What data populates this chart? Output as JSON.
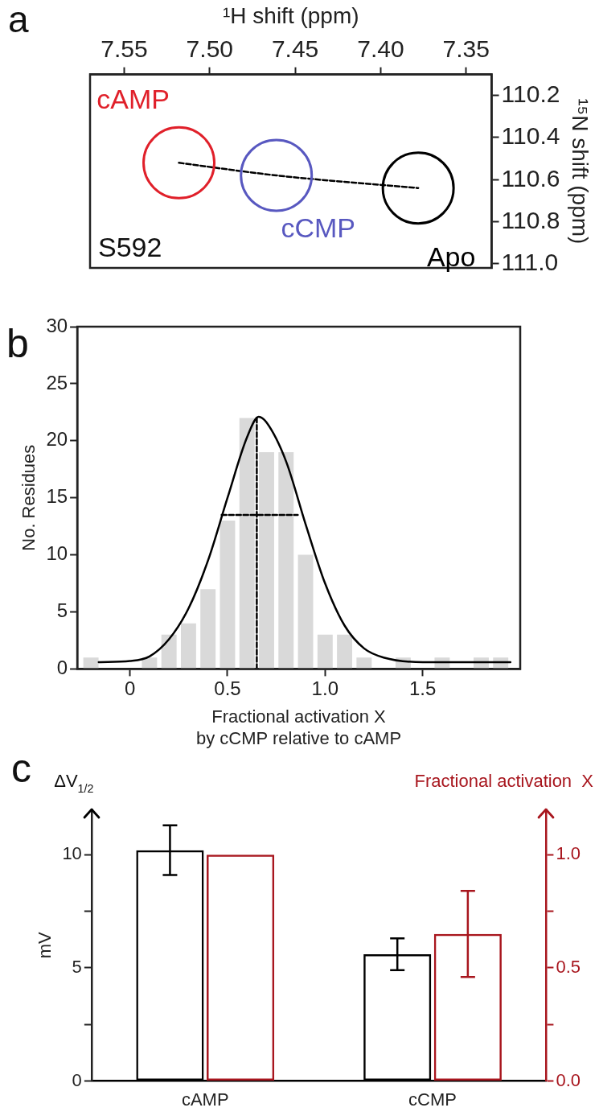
{
  "chart_data": [
    {
      "type": "scatter",
      "xlabel": "¹H shift (ppm)",
      "ylabel": "¹⁵N shift (ppm)",
      "xlim": [
        7.57,
        7.335
      ],
      "xticks": [
        7.55,
        {
          "value": 7.5,
          "label": "7.50"
        },
        7.45,
        {
          "value": 7.4,
          "label": "7.40"
        },
        7.35
      ],
      "ylim": [
        111.02,
        110.1
      ],
      "yticks": [
        110.2,
        110.4,
        110.6,
        110.8,
        {
          "value": 111,
          "label": "111.0"
        }
      ],
      "annotations": [
        "a",
        "S592"
      ],
      "series": [
        {
          "name": "cAMP",
          "color": "#e0202a",
          "marker": "circle",
          "x": [
            7.518
          ],
          "values": [
            110.52
          ]
        },
        {
          "name": "cCMP",
          "color": "#5858c0",
          "marker": "circle",
          "x": [
            7.461
          ],
          "values": [
            110.58
          ]
        },
        {
          "name": "Apo",
          "color": "#000000",
          "marker": "circle",
          "x": [
            7.378
          ],
          "values": [
            110.64
          ]
        },
        {
          "type": "line",
          "color": "#000000",
          "line_style": "dashed",
          "x": [
            7.518,
            7.461,
            7.378
          ],
          "values": [
            110.52,
            110.58,
            110.64
          ]
        }
      ]
    },
    {
      "type": "histogram",
      "xlabel": "Fractional activation X\nby cCMP relative to cAMP",
      "ylabel": "No. Residues",
      "xlim": [
        -0.27,
        2.0
      ],
      "xticks": [
        0,
        0.5,
        {
          "value": 1,
          "label": "1.0"
        },
        1.5
      ],
      "ylim": [
        0,
        30
      ],
      "yticks": [
        0,
        5,
        10,
        15,
        20,
        25,
        30
      ],
      "annotations": [
        "b"
      ],
      "bins": [
        -0.25,
        -0.15,
        -0.05,
        0.05,
        0.15,
        0.25,
        0.35,
        0.45,
        0.55,
        0.65,
        0.75,
        0.85,
        0.95,
        1.05,
        1.15,
        1.25,
        1.35,
        1.45,
        1.55,
        1.65,
        1.75,
        1.85,
        1.95
      ],
      "series": [
        {
          "type": "histogram",
          "color": "#d9d9d9",
          "values": [
            1,
            0,
            0,
            1,
            3,
            4,
            7,
            13,
            22,
            19,
            19,
            10,
            3,
            3,
            1,
            0,
            1,
            0,
            1,
            0,
            1,
            1
          ]
        },
        {
          "type": "line",
          "color": "#000000",
          "x": [
            -0.16,
            0,
            0.1,
            0.2,
            0.3,
            0.4,
            0.5,
            0.6,
            0.66,
            0.7,
            0.8,
            0.9,
            1.0,
            1.1,
            1.2,
            1.3,
            1.5,
            1.95
          ],
          "values": [
            0.6,
            0.7,
            1.1,
            2.6,
            5.3,
            9.5,
            15,
            20.3,
            22.1,
            21.6,
            18.2,
            12.7,
            7.5,
            3.8,
            1.8,
            1.0,
            0.6,
            0.6
          ]
        },
        {
          "type": "line",
          "color": "#000000",
          "line_style": "dashed",
          "x": [
            0.65,
            0.65
          ],
          "values": [
            0,
            22.1
          ]
        },
        {
          "type": "line",
          "color": "#000000",
          "line_style": "dashed",
          "x": [
            0.47,
            0.86
          ],
          "values": [
            13.5,
            13.5
          ]
        }
      ]
    },
    {
      "type": "bar",
      "categories": [
        "cAMP",
        "cCMP"
      ],
      "ylabel": "mV",
      "y2label": "Fractional activation  X",
      "ylim": [
        0,
        12
      ],
      "yticks": [
        0,
        {
          "value": 2.5,
          "label": null
        },
        5,
        {
          "value": 7.5,
          "label": null
        },
        10
      ],
      "y2lim": [
        0,
        1.2
      ],
      "y2ticks": [
        {
          "value": 0,
          "label": "0.0"
        },
        {
          "value": 0.25,
          "label": null
        },
        {
          "value": 0.5,
          "label": "0.5"
        },
        {
          "value": 0.75,
          "label": null
        },
        {
          "value": 1,
          "label": "1.0"
        }
      ],
      "annotations": [
        "c",
        "ΔV$_{1/2}$"
      ],
      "series": [
        {
          "color": "#000000",
          "values": [
            10.2,
            5.6
          ],
          "errors": [
            [
              9.1,
              11.3
            ],
            [
              4.9,
              6.3
            ]
          ]
        },
        {
          "color": "#a8161e",
          "axis": "y2",
          "values": [
            1.0,
            0.65
          ],
          "errors": [
            null,
            [
              0.46,
              0.84
            ]
          ]
        }
      ]
    }
  ]
}
